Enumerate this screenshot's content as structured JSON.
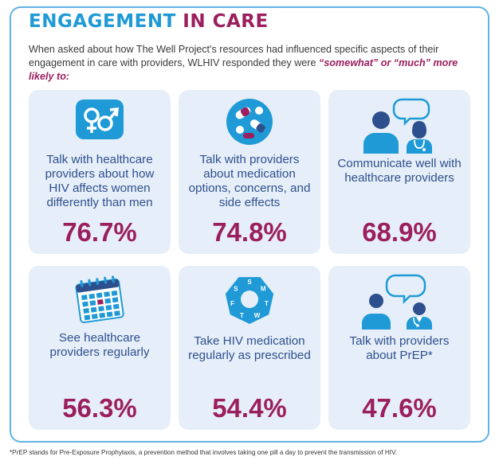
{
  "title": {
    "part1": "ENGAGEMENT",
    "part2": "IN CARE"
  },
  "intro": {
    "text": "When asked about how The Well Project's resources had influenced specific aspects of their engagement in care with providers, WLHIV responded they were ",
    "emphasis": "“somewhat” or “much” more likely to:"
  },
  "cards": [
    {
      "icon": "gender-symbols-icon",
      "label": "Talk with healthcare providers about how HIV affects women differently than men",
      "value": "76.7%"
    },
    {
      "icon": "medication-pills-icon",
      "label": "Talk with providers about medication options, concerns, and side effects",
      "value": "74.8%"
    },
    {
      "icon": "patient-provider-chat-icon",
      "label": "Communicate well with healthcare providers",
      "value": "68.9%"
    },
    {
      "icon": "calendar-icon",
      "label": "See healthcare providers regularly",
      "value": "56.3%"
    },
    {
      "icon": "weekly-pill-organizer-icon",
      "label": "Take HIV medication regularly as prescribed",
      "value": "54.4%"
    },
    {
      "icon": "patient-doctor-speech-icon",
      "label": "Talk with providers about PrEP*",
      "value": "47.6%"
    }
  ],
  "pill_organizer_days": [
    "S",
    "M",
    "T",
    "W",
    "T",
    "F",
    "S"
  ],
  "colors": {
    "accent_blue": "#1f9ad6",
    "accent_plum": "#9b1f5e",
    "card_bg": "#e6eff9",
    "label_navy": "#2e4f8e"
  },
  "footnote": "*PrEP stands for Pre-Exposure Prophylaxis, a prevention method that involves taking one pill a day to prevent the transmission of HIV."
}
